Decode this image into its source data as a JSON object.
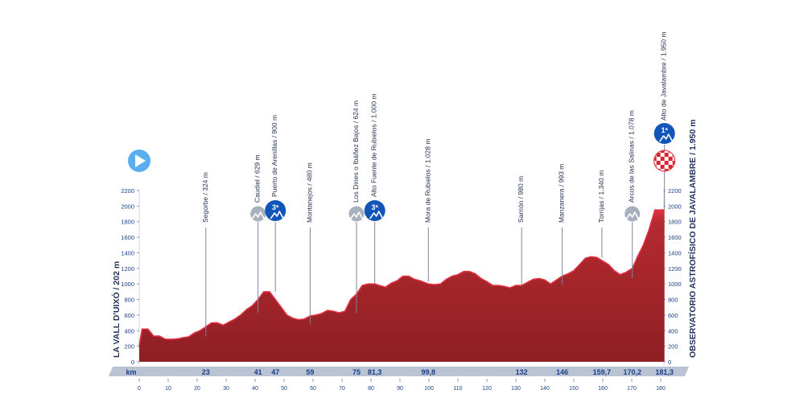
{
  "chart_data": {
    "type": "area",
    "xlabel": "km",
    "ylabel": "",
    "xlim": [
      0,
      181.3
    ],
    "ylim": [
      0,
      2200
    ],
    "x_ticks": [
      0,
      10,
      20,
      30,
      40,
      50,
      60,
      70,
      80,
      90,
      100,
      110,
      120,
      130,
      140,
      150,
      160,
      170,
      180
    ],
    "y_ticks": [
      0,
      200,
      400,
      600,
      800,
      1000,
      1200,
      1400,
      1600,
      1800,
      2000,
      2200
    ],
    "profile": {
      "x": [
        0,
        1,
        3,
        5,
        7,
        9,
        10,
        12,
        14,
        15,
        17,
        19,
        21,
        23,
        25,
        27,
        29,
        31,
        33,
        35,
        37,
        39,
        41,
        43,
        45,
        47,
        49,
        51,
        53,
        55,
        57,
        59,
        61,
        63,
        65,
        67,
        69,
        71,
        73,
        75,
        77,
        79,
        81.3,
        83,
        85,
        87,
        89,
        91,
        93,
        95,
        97,
        99.8,
        102,
        104,
        106,
        108,
        110,
        112,
        114,
        116,
        118,
        120,
        122,
        124,
        126,
        128,
        130,
        132,
        134,
        136,
        138,
        140,
        142,
        144,
        146,
        148,
        150,
        152,
        154,
        156,
        158,
        159.7,
        162,
        164,
        166,
        168,
        170.2,
        172,
        174,
        176,
        178,
        180,
        181.3
      ],
      "y": [
        202,
        420,
        420,
        330,
        330,
        290,
        290,
        290,
        300,
        310,
        320,
        370,
        400,
        450,
        500,
        500,
        470,
        510,
        550,
        600,
        670,
        720,
        800,
        900,
        900,
        800,
        700,
        600,
        560,
        540,
        550,
        590,
        600,
        620,
        660,
        650,
        630,
        650,
        800,
        870,
        980,
        1000,
        1000,
        980,
        960,
        1010,
        1040,
        1100,
        1100,
        1060,
        1040,
        1000,
        990,
        1000,
        1060,
        1100,
        1120,
        1160,
        1160,
        1130,
        1070,
        1030,
        980,
        980,
        970,
        950,
        980,
        980,
        1020,
        1060,
        1070,
        1050,
        1000,
        1050,
        1100,
        1130,
        1170,
        1250,
        1330,
        1350,
        1340,
        1300,
        1250,
        1170,
        1120,
        1150,
        1200,
        1350,
        1500,
        1700,
        1950,
        1950,
        1950
      ]
    },
    "points": [
      {
        "label": "Segorbe / 324 m",
        "km_label": "23",
        "km": 23,
        "elev": 324,
        "icon": "none"
      },
      {
        "label": "Caudiel / 629 m",
        "km_label": "41",
        "km": 41,
        "elev": 629,
        "icon": "intermediate-sprint"
      },
      {
        "label": "Puerto de Arenillas / 900 m",
        "km_label": "47",
        "km": 47,
        "elev": 900,
        "icon": "climb-3"
      },
      {
        "label": "Montanejos / 480 m",
        "km_label": "59",
        "km": 59,
        "elev": 480,
        "icon": "none"
      },
      {
        "label": "Los Dines o Ibáñez Bajos / 624 m",
        "km_label": "75",
        "km": 75,
        "elev": 624,
        "icon": "intermediate-sprint"
      },
      {
        "label": "Alto Fuente de Rubielos / 1.000 m",
        "km_label": "81,3",
        "km": 81.3,
        "elev": 1000,
        "icon": "climb-3"
      },
      {
        "label": "Mora de Rubielos / 1.028 m",
        "km_label": "99,8",
        "km": 99.8,
        "elev": 1028,
        "icon": "none"
      },
      {
        "label": "Sarrión / 980 m",
        "km_label": "132",
        "km": 132,
        "elev": 980,
        "icon": "none"
      },
      {
        "label": "Manzanera / 993 m",
        "km_label": "146",
        "km": 146,
        "elev": 993,
        "icon": "none"
      },
      {
        "label": "Torrijas / 1.340 m",
        "km_label": "159,7",
        "km": 159.7,
        "elev": 1340,
        "icon": "none"
      },
      {
        "label": "Arcos de las Salinas / 1.078 m",
        "km_label": "170,2",
        "km": 170.2,
        "elev": 1078,
        "icon": "intermediate-sprint"
      },
      {
        "label": "Alto de Javalambre / 1.950 m",
        "km_label": "181,3",
        "km": 181.3,
        "elev": 1950,
        "icon": "climb-1"
      }
    ],
    "start_label": "LA VALL D'UIXÓ / 202 m",
    "finish_label": "OBSERVATORIO ASTROFÍSICO DE JAVALAMBRE / 1.950 m",
    "category_labels": {
      "climb-3": "3ª",
      "climb-1": "1ª"
    },
    "colors": {
      "profile_top": "#e03140",
      "profile_bottom": "#8e1f24",
      "marker_blue": "#1155b8",
      "sprint_gray": "#a8b0be",
      "start_blue": "#5aaef0",
      "km_bar": "#b9c3d3",
      "axis_text": "#1a3f8a",
      "grid": "#cfd5de"
    },
    "icons": {
      "start": "play-icon",
      "finish": "checkered-flag-icon",
      "climb": "mountain-icon",
      "sprint": "sprint-icon"
    }
  }
}
